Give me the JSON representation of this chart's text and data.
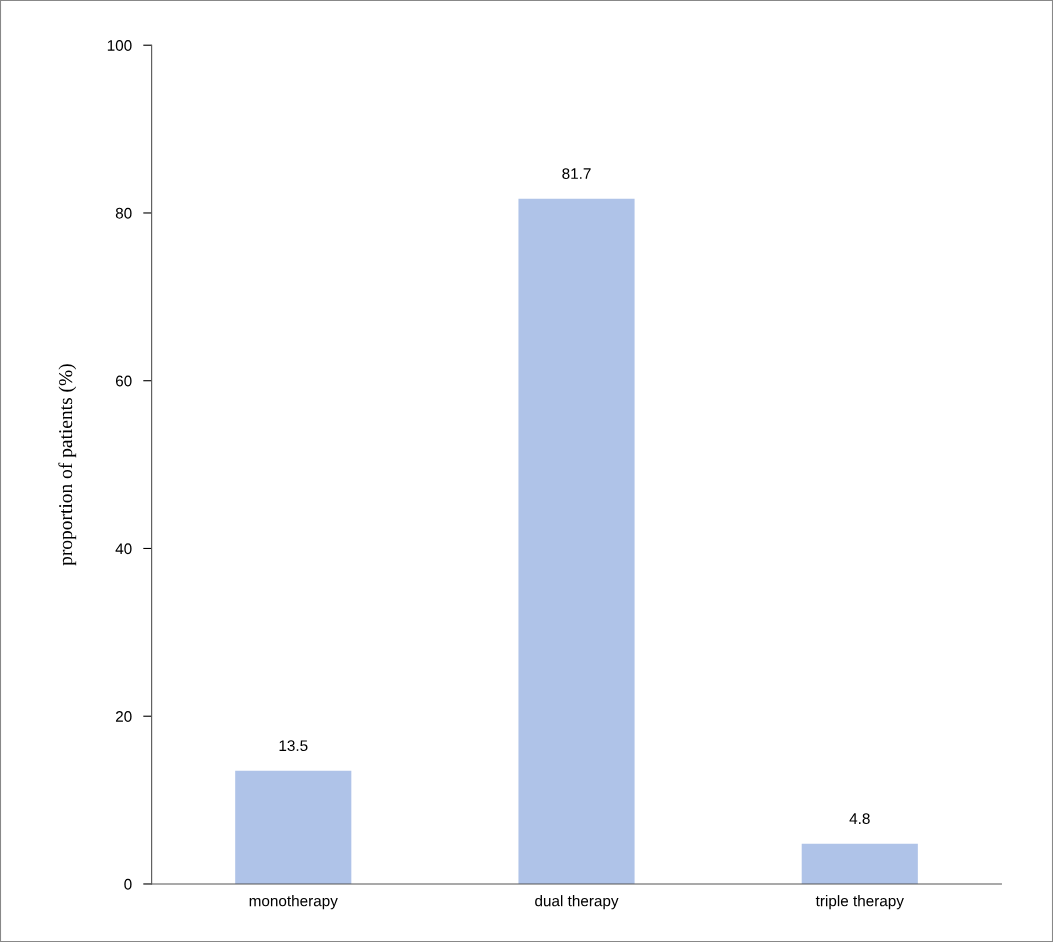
{
  "chart_data": {
    "type": "bar",
    "ylabel": "proportion of patients (%)",
    "categories": [
      "monotherapy",
      "dual therapy",
      "triple therapy"
    ],
    "values": [
      13.5,
      81.7,
      4.8
    ],
    "color": "#afc3e8",
    "ylim": [
      0,
      100
    ],
    "yticks": [
      0,
      20,
      40,
      60,
      80,
      100
    ],
    "grid": false,
    "data_labels": true
  }
}
